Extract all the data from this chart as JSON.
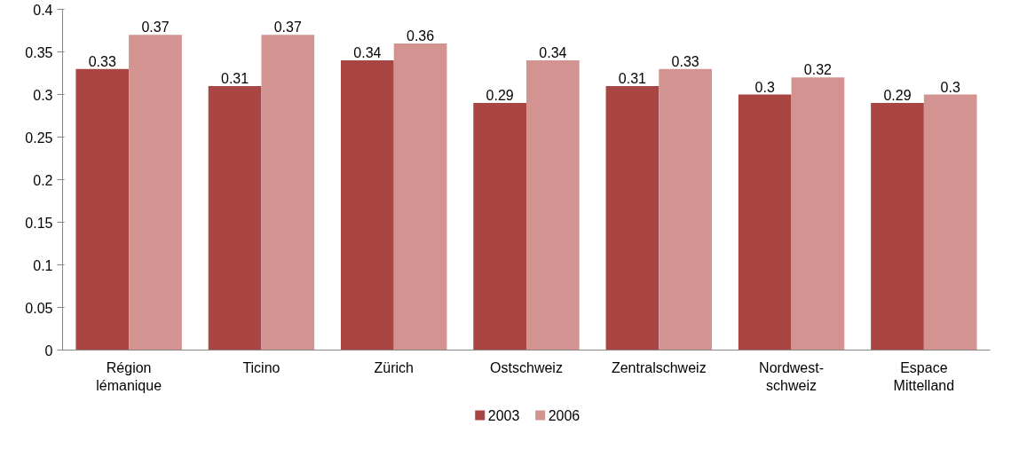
{
  "chart_data": {
    "type": "bar",
    "categories": [
      "Région lémanique",
      "Ticino",
      "Zürich",
      "Ostschweiz",
      "Zentralschweiz",
      "Nordwest-schweiz",
      "Espace Mittelland"
    ],
    "series": [
      {
        "name": "2003",
        "color": "#a94542",
        "values": [
          0.33,
          0.31,
          0.34,
          0.29,
          0.31,
          0.3,
          0.29
        ]
      },
      {
        "name": "2006",
        "color": "#d39391",
        "values": [
          0.37,
          0.37,
          0.36,
          0.34,
          0.33,
          0.32,
          0.3
        ]
      }
    ],
    "ylim": [
      0,
      0.4
    ],
    "yticks": [
      0,
      0.05,
      0.1,
      0.15,
      0.2,
      0.25,
      0.3,
      0.35,
      0.4
    ],
    "data_labels": true,
    "grid": false,
    "legend": "bottom"
  }
}
